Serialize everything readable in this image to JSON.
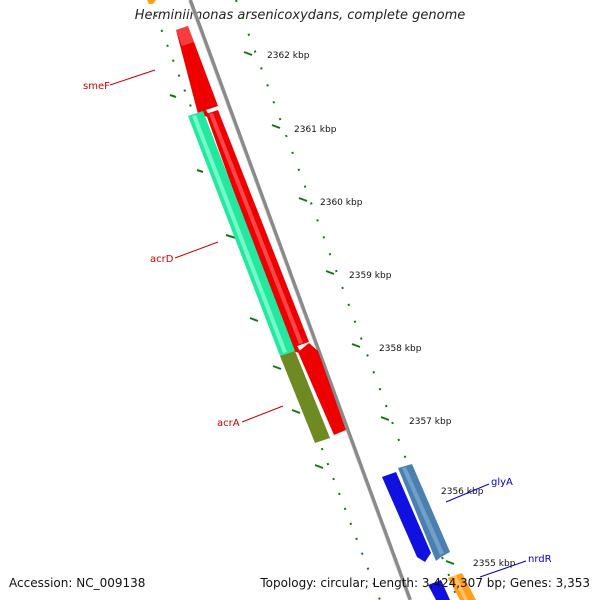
{
  "title": "Herminiimonas arsenicoxydans, complete genome",
  "footer": {
    "accession": "Accession: NC_009138",
    "summary": "Topology: circular; Length: 3,424,307 bp; Genes: 3,353"
  },
  "ticks": [
    "2362 kbp",
    "2361 kbp",
    "2360 kbp",
    "2359 kbp",
    "2358 kbp",
    "2357 kbp",
    "2356 kbp",
    "2355 kbp"
  ],
  "genes": [
    {
      "name": "smeF",
      "color": "#ee0000",
      "strand": "reverse"
    },
    {
      "name": "acrD",
      "color": "#ee0000",
      "strand": "reverse"
    },
    {
      "name": "acrD",
      "color": "#22e8a0",
      "strand": "reverse"
    },
    {
      "name": "acrA",
      "color": "#ee0000",
      "strand": "reverse"
    },
    {
      "name": "acrA",
      "color": "#6f8a22",
      "strand": "reverse"
    },
    {
      "name": "glyA",
      "color": "#4a7fb0",
      "strand": "reverse"
    },
    {
      "name": "nrdR",
      "color": "#1010e0",
      "strand": "reverse"
    }
  ],
  "labels": [
    {
      "text": "smeF",
      "color": "#cc0000"
    },
    {
      "text": "acrD",
      "color": "#cc0000"
    },
    {
      "text": "acrA",
      "color": "#cc0000"
    },
    {
      "text": "glyA",
      "color": "#0000cc"
    },
    {
      "text": "nrdR",
      "color": "#0000cc"
    }
  ],
  "colors": {
    "backbone": "#8a8a8a",
    "gc_skew": "#117711",
    "orange": "#ff9f1a"
  }
}
